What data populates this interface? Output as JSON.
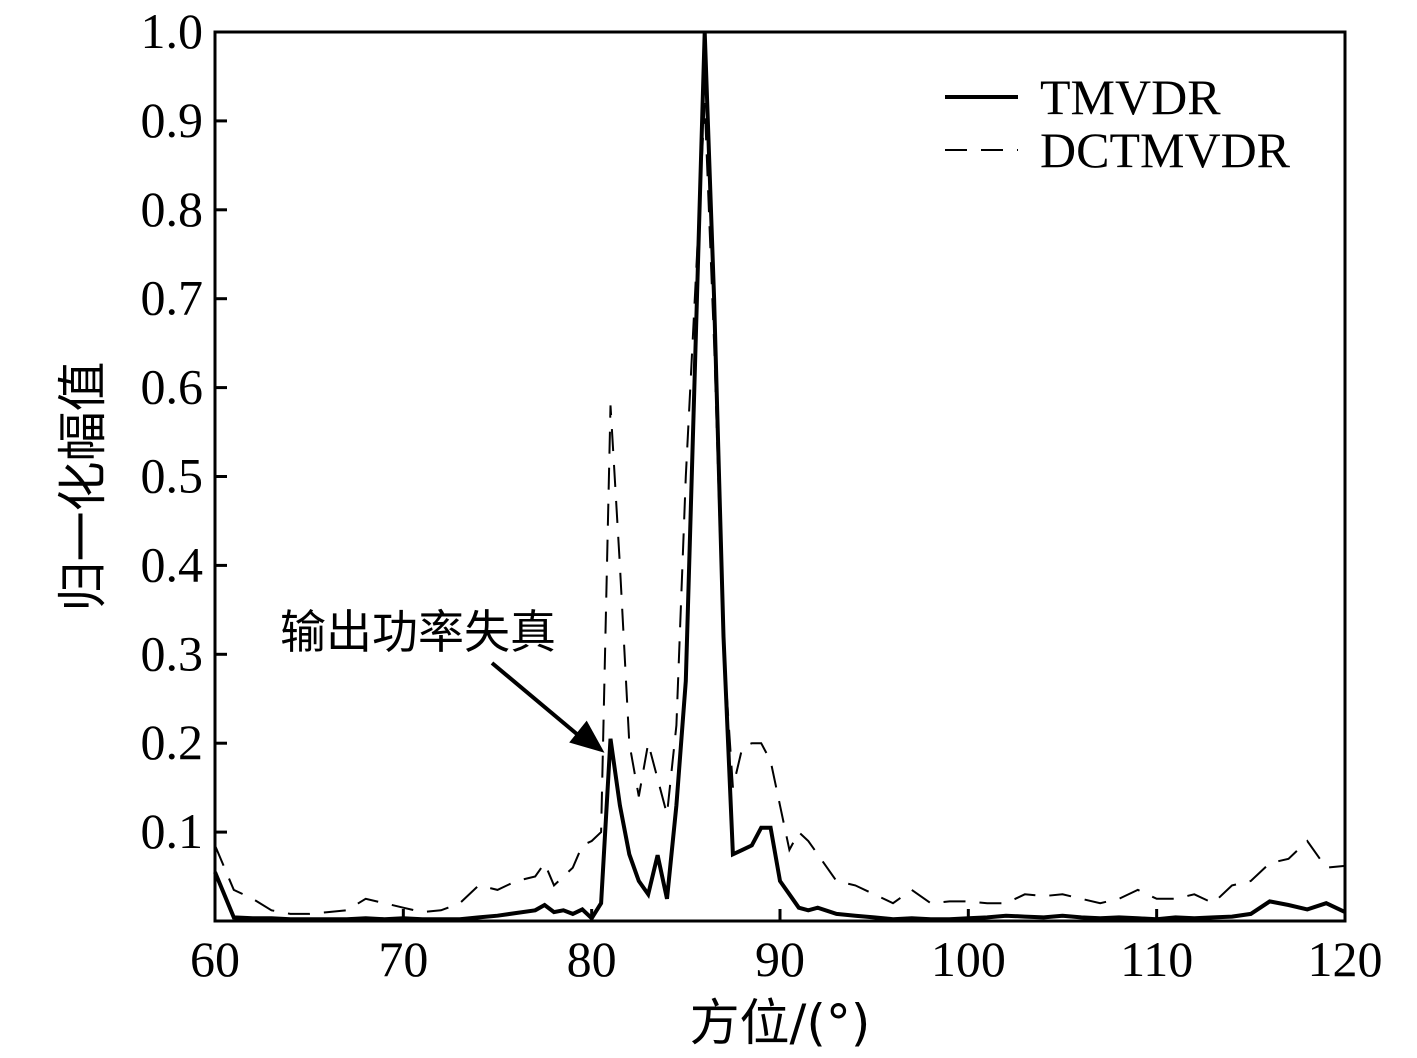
{
  "chart_data": {
    "type": "line",
    "xlabel": "方位/(°)",
    "ylabel": "归一化幅值",
    "xlim": [
      60,
      120
    ],
    "ylim": [
      0,
      1.0
    ],
    "x_ticks": [
      60,
      70,
      80,
      90,
      100,
      110,
      120
    ],
    "x_tick_labels": [
      "60",
      "70",
      "80",
      "90",
      "100",
      "110",
      "120"
    ],
    "y_ticks": [
      0.1,
      0.2,
      0.3,
      0.4,
      0.5,
      0.6,
      0.7,
      0.8,
      0.9,
      1.0
    ],
    "y_tick_labels": [
      "0.1",
      "0.2",
      "0.3",
      "0.4",
      "0.5",
      "0.6",
      "0.7",
      "0.8",
      "0.9",
      "1.0"
    ],
    "grid": false,
    "legend_position": "top-right",
    "series": [
      {
        "name": "TMVDR",
        "style": "solid",
        "color": "#000000",
        "x": [
          60,
          61,
          62,
          63,
          64,
          65,
          66,
          67,
          68,
          69,
          70,
          71,
          72,
          73,
          74,
          75,
          76,
          77,
          77.5,
          78,
          78.5,
          79,
          79.5,
          80,
          80.5,
          81,
          81.5,
          82,
          82.5,
          83,
          83.5,
          84,
          84.5,
          85,
          86,
          86.5,
          87,
          87.5,
          88,
          88.5,
          89,
          89.5,
          90,
          90.5,
          91,
          91.5,
          92,
          93,
          94,
          95,
          96,
          97,
          98,
          99,
          100,
          101,
          102,
          103,
          104,
          105,
          106,
          107,
          108,
          109,
          110,
          111,
          112,
          113,
          114,
          115,
          116,
          117,
          118,
          119,
          120
        ],
        "y": [
          0.055,
          0.004,
          0.003,
          0.003,
          0.002,
          0.002,
          0.002,
          0.002,
          0.003,
          0.002,
          0.003,
          0.002,
          0.002,
          0.002,
          0.004,
          0.006,
          0.009,
          0.012,
          0.018,
          0.01,
          0.012,
          0.008,
          0.013,
          0.003,
          0.02,
          0.205,
          0.13,
          0.075,
          0.045,
          0.03,
          0.074,
          0.025,
          0.13,
          0.27,
          1.0,
          0.7,
          0.32,
          0.075,
          0.08,
          0.085,
          0.105,
          0.105,
          0.045,
          0.03,
          0.015,
          0.012,
          0.015,
          0.008,
          0.006,
          0.004,
          0.002,
          0.003,
          0.002,
          0.002,
          0.003,
          0.004,
          0.006,
          0.005,
          0.004,
          0.006,
          0.004,
          0.003,
          0.004,
          0.003,
          0.002,
          0.004,
          0.003,
          0.004,
          0.005,
          0.008,
          0.022,
          0.018,
          0.013,
          0.02,
          0.01
        ]
      },
      {
        "name": "DCTMVDR",
        "style": "dashed",
        "color": "#000000",
        "x": [
          60,
          61,
          62,
          63,
          64,
          65,
          66,
          67,
          68,
          69,
          70,
          71,
          72,
          73,
          74,
          75,
          76,
          77,
          77.5,
          78,
          78.5,
          79,
          79.5,
          80,
          80.5,
          81,
          81.5,
          82,
          82.5,
          83,
          83.5,
          84,
          84.5,
          85,
          86,
          86.5,
          87,
          87.5,
          88,
          88.5,
          89,
          89.5,
          90,
          90.5,
          91,
          91.5,
          92,
          93,
          94,
          95,
          96,
          97,
          98,
          99,
          100,
          101,
          102,
          103,
          104,
          105,
          106,
          107,
          108,
          109,
          110,
          111,
          112,
          113,
          114,
          115,
          116,
          117,
          118,
          119,
          120
        ],
        "y": [
          0.085,
          0.035,
          0.025,
          0.012,
          0.008,
          0.008,
          0.01,
          0.012,
          0.025,
          0.02,
          0.015,
          0.01,
          0.012,
          0.02,
          0.04,
          0.035,
          0.045,
          0.05,
          0.065,
          0.04,
          0.05,
          0.06,
          0.085,
          0.09,
          0.1,
          0.58,
          0.4,
          0.2,
          0.14,
          0.2,
          0.16,
          0.12,
          0.22,
          0.5,
          0.92,
          0.65,
          0.31,
          0.15,
          0.195,
          0.2,
          0.2,
          0.18,
          0.13,
          0.08,
          0.1,
          0.09,
          0.075,
          0.045,
          0.04,
          0.03,
          0.02,
          0.035,
          0.02,
          0.022,
          0.022,
          0.02,
          0.02,
          0.03,
          0.028,
          0.03,
          0.025,
          0.02,
          0.025,
          0.035,
          0.025,
          0.025,
          0.03,
          0.02,
          0.04,
          0.045,
          0.065,
          0.07,
          0.09,
          0.06,
          0.062
        ]
      }
    ],
    "annotations": [
      {
        "text": "输出功率失真",
        "target": {
          "x": 81,
          "y": 0.205
        }
      }
    ]
  }
}
